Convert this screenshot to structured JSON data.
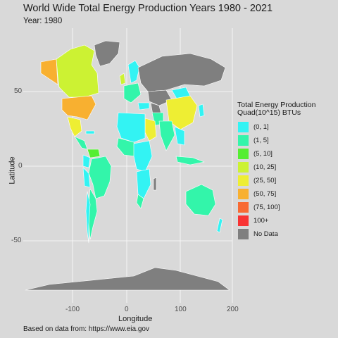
{
  "title": "World Wide Total Energy Production Years 1980 - 2021",
  "subtitle": "Year: 1980",
  "caption": "Based on data from: https://www.eia.gov",
  "xlabel": "Longitude",
  "ylabel": "Latitude",
  "x_ticks": [
    "-100",
    "0",
    "100",
    "200"
  ],
  "y_ticks": [
    "50",
    "0",
    "-50"
  ],
  "legend": {
    "title_line1": "Total Energy Production",
    "title_line2": "Quad(10^15) BTUs",
    "items": [
      {
        "label": "(0, 1]",
        "color": "#33f3f3"
      },
      {
        "label": "(1, 5]",
        "color": "#33f5aa"
      },
      {
        "label": "(5, 10]",
        "color": "#55ee33"
      },
      {
        "label": "(10, 25]",
        "color": "#ccf233"
      },
      {
        "label": "(25, 50]",
        "color": "#eeee33"
      },
      {
        "label": "(50, 75]",
        "color": "#f8b030"
      },
      {
        "label": "(75, 100]",
        "color": "#f86a33"
      },
      {
        "label": "100+",
        "color": "#f83333"
      },
      {
        "label": "No Data",
        "color": "#7f7f7f"
      }
    ]
  },
  "colors": {
    "panel": "#d9d9d9",
    "grid": "#ffffff",
    "no_data": "#7f7f7f"
  }
}
